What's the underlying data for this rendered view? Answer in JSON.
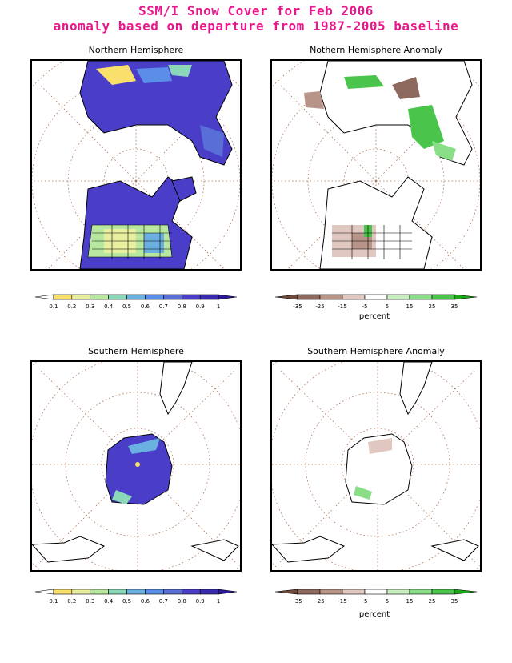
{
  "header": {
    "line1": "SSM/I Snow Cover for Feb 2006",
    "line2": "anomaly based on departure from 1987-2005 baseline"
  },
  "panels": {
    "nh": {
      "title": "Northern Hemisphere"
    },
    "nha": {
      "title": "Nothern Hemisphere Anomaly"
    },
    "sh": {
      "title": "Southern Hemisphere"
    },
    "sha": {
      "title": "Southern Hemisphere Anomaly"
    }
  },
  "colorbars": {
    "fraction": {
      "labels": [
        "0.1",
        "0.2",
        "0.3",
        "0.4",
        "0.5",
        "0.6",
        "0.7",
        "0.8",
        "0.9",
        "1"
      ],
      "colors": [
        "#ffffff",
        "#f9e06b",
        "#e8f0a0",
        "#b8e8a0",
        "#8ad8b8",
        "#6ab0e0",
        "#5a8ee8",
        "#5a6ed8",
        "#4a3ec8",
        "#3a2ab0",
        "#2a1a9a"
      ]
    },
    "anomaly": {
      "labels": [
        "-35",
        "-25",
        "-15",
        "-5",
        "5",
        "15",
        "25",
        "35"
      ],
      "colors": [
        "#6e4a3e",
        "#8e6a5e",
        "#b89488",
        "#e0c8c0",
        "#ffffff",
        "#c8eec0",
        "#8ade88",
        "#4ac44a",
        "#1aa81a"
      ],
      "unit": "percent"
    }
  }
}
